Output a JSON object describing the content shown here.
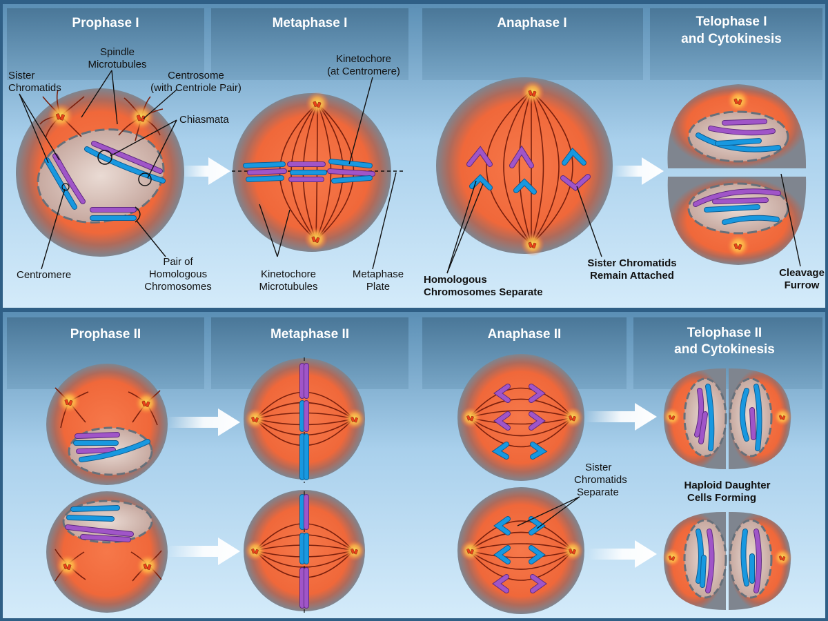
{
  "headers": {
    "prophase1": "Prophase I",
    "metaphase1": "Metaphase I",
    "anaphase1": "Anaphase I",
    "telophase1_line1": "Telophase I",
    "telophase1_line2": "and Cytokinesis",
    "prophase2": "Prophase II",
    "metaphase2": "Metaphase II",
    "anaphase2": "Anaphase II",
    "telophase2_line1": "Telophase II",
    "telophase2_line2": "and Cytokinesis"
  },
  "labels": {
    "spindle_microtubules": [
      "Spindle",
      "Microtubules"
    ],
    "sister_chromatids": [
      "Sister",
      "Chromatids"
    ],
    "centrosome": [
      "Centrosome",
      "(with Centriole Pair)"
    ],
    "chiasmata": "Chiasmata",
    "centromere": "Centromere",
    "pair_homologous": [
      "Pair of",
      "Homologous",
      "Chromosomes"
    ],
    "kinetochore": [
      "Kinetochore",
      "(at Centromere)"
    ],
    "kinetochore_microtubules": [
      "Kinetochore",
      "Microtubules"
    ],
    "metaphase_plate": [
      "Metaphase",
      "Plate"
    ],
    "homologous_separate": [
      "Homologous",
      "Chromosomes Separate"
    ],
    "sister_remain_attached": [
      "Sister Chromatids",
      "Remain Attached"
    ],
    "cleavage_furrow": [
      "Cleavage",
      "Furrow"
    ],
    "sister_separate": [
      "Sister",
      "Chromatids",
      "Separate"
    ],
    "haploid_forming": [
      "Haploid Daughter",
      "Cells Forming"
    ]
  },
  "colors": {
    "background": "#2f5f86",
    "panel_light": "#cfe6f6",
    "cytoplasm": "#f26a3d",
    "cell_rim": "#8a8f97",
    "chromosome_blue": "#1898e0",
    "chromosome_purple": "#a055c8",
    "spindle": "#7a1f0c"
  }
}
